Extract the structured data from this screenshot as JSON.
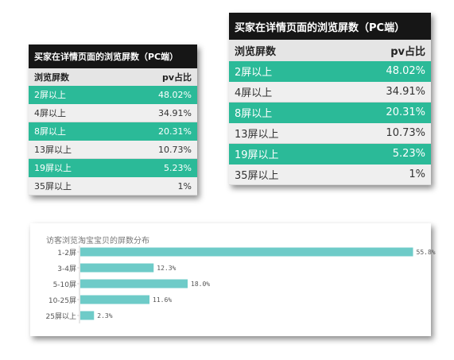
{
  "tables": [
    {
      "title": "买家在详情页面的浏览屏数（PC端）",
      "headers": [
        "浏览屏数",
        "pv占比"
      ],
      "rows": [
        {
          "label": "2屏以上",
          "value": "48.02%"
        },
        {
          "label": "4屏以上",
          "value": "34.91%"
        },
        {
          "label": "8屏以上",
          "value": "20.31%"
        },
        {
          "label": "13屏以上",
          "value": "10.73%"
        },
        {
          "label": "19屏以上",
          "value": "5.23%"
        },
        {
          "label": "35屏以上",
          "value": "1%"
        }
      ]
    },
    {
      "title": "买家在详情页面的浏览屏数（PC端）",
      "headers": [
        "浏览屏数",
        "pv占比"
      ],
      "rows": [
        {
          "label": "2屏以上",
          "value": "48.02%"
        },
        {
          "label": "4屏以上",
          "value": "34.91%"
        },
        {
          "label": "8屏以上",
          "value": "20.31%"
        },
        {
          "label": "13屏以上",
          "value": "10.73%"
        },
        {
          "label": "19屏以上",
          "value": "5.23%"
        },
        {
          "label": "35屏以上",
          "value": "1%"
        }
      ]
    }
  ],
  "chart_data": {
    "type": "bar",
    "orientation": "horizontal",
    "title": "访客浏览淘宝宝贝的屏数分布",
    "categories": [
      "1-2屏",
      "3-4屏",
      "5-10屏",
      "10-25屏",
      "25屏以上"
    ],
    "values": [
      55.8,
      12.3,
      18.0,
      11.6,
      2.3
    ],
    "value_labels": [
      "55.8%",
      "12.3%",
      "18.0%",
      "11.6%",
      "2.3%"
    ],
    "xlim": [
      0,
      60
    ],
    "grid": false,
    "legend": "none",
    "bar_color": "#6ecbc8"
  },
  "colors": {
    "table_highlight": "#2bba98",
    "table_title_bg": "#161616",
    "bar": "#6ecbc8"
  }
}
